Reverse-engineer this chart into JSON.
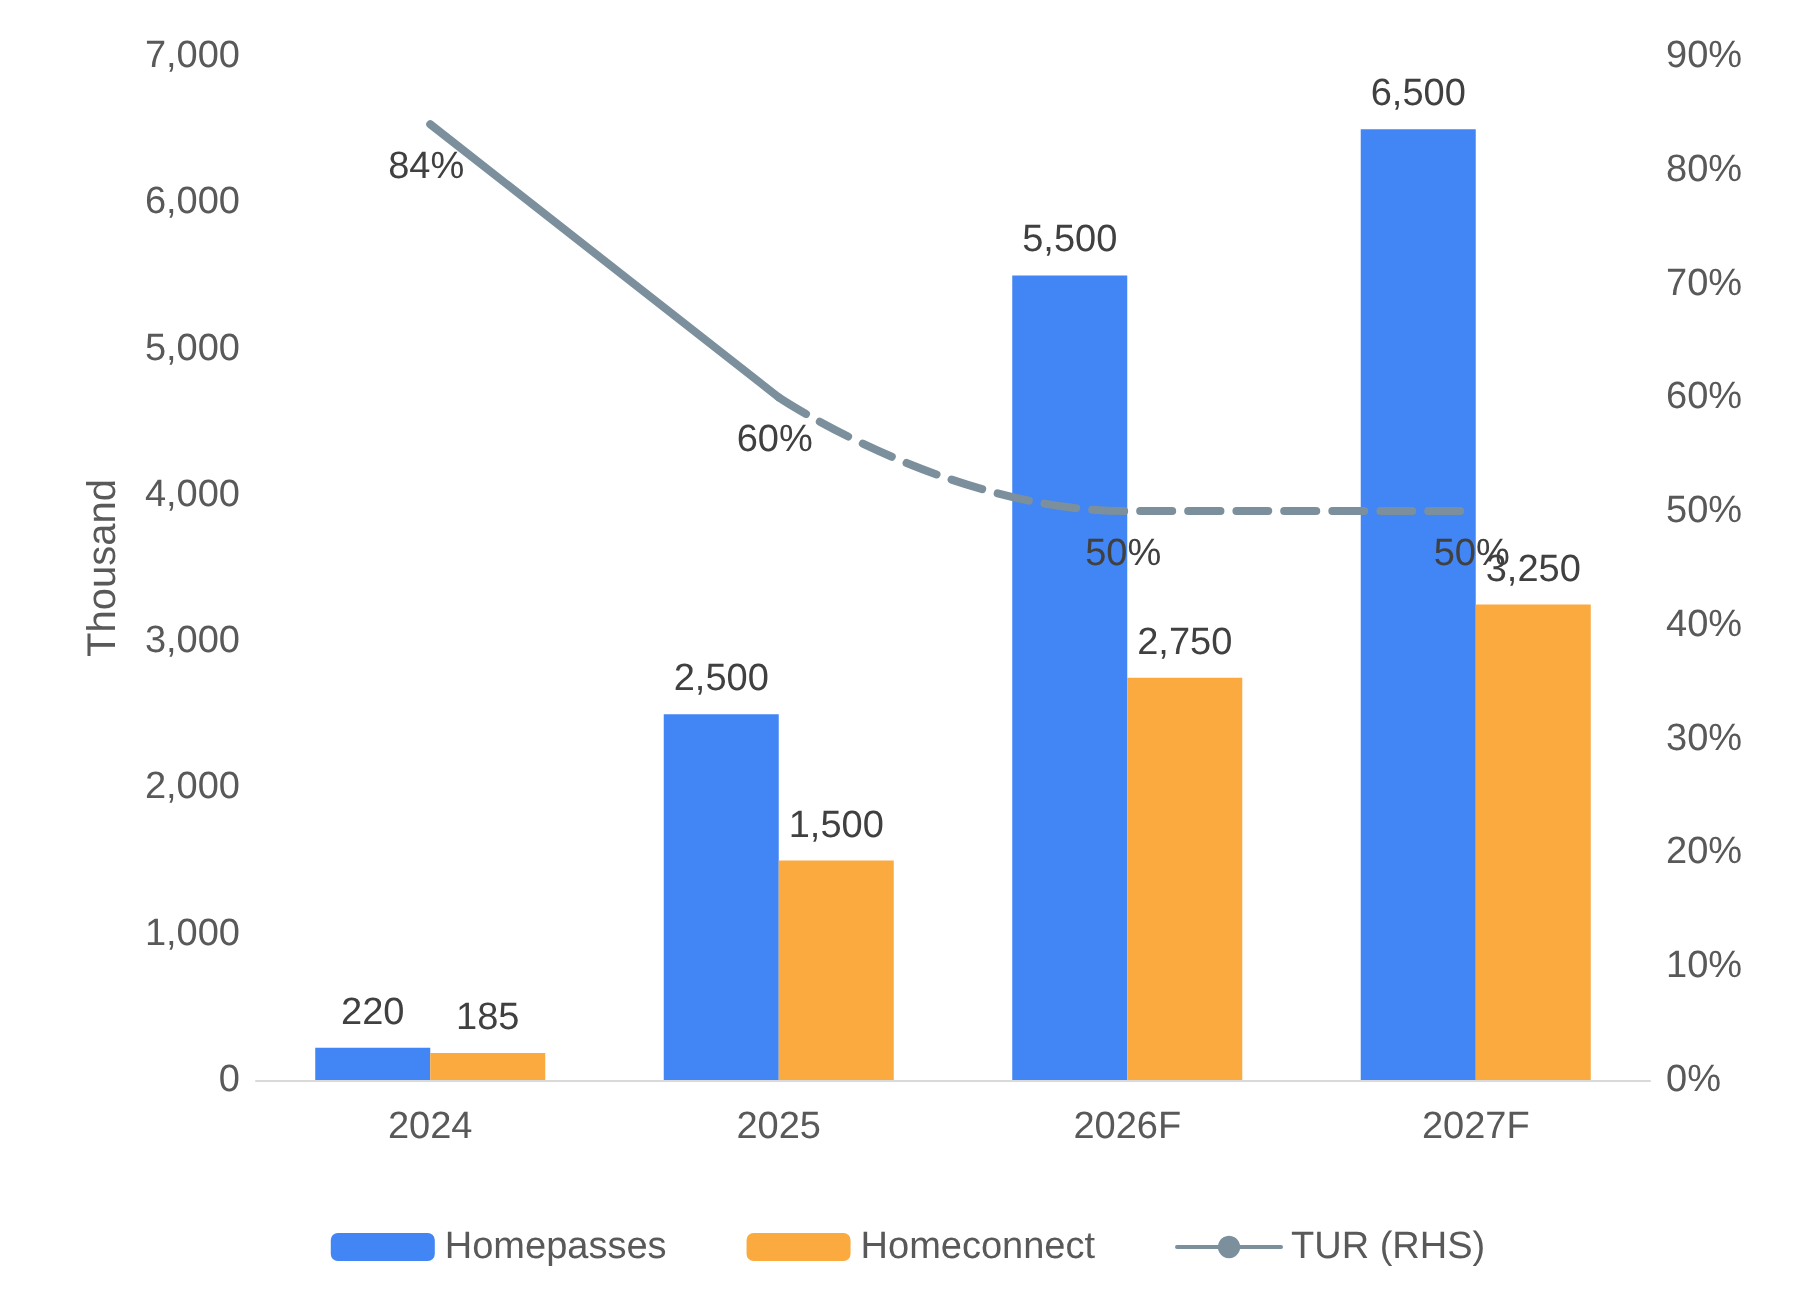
{
  "chart_data": {
    "type": "bar",
    "categories": [
      "2024",
      "2025",
      "2026F",
      "2027F"
    ],
    "ylabel": "Thousand",
    "ylim": [
      0,
      7000
    ],
    "yticks": [
      {
        "value": 0,
        "label": "0"
      },
      {
        "value": 1000,
        "label": "1,000"
      },
      {
        "value": 2000,
        "label": "2,000"
      },
      {
        "value": 3000,
        "label": "3,000"
      },
      {
        "value": 4000,
        "label": "4,000"
      },
      {
        "value": 5000,
        "label": "5,000"
      },
      {
        "value": 6000,
        "label": "6,000"
      },
      {
        "value": 7000,
        "label": "7,000"
      }
    ],
    "y2lim": [
      0,
      90
    ],
    "y2ticks": [
      {
        "value": 0,
        "label": "0%"
      },
      {
        "value": 10,
        "label": "10%"
      },
      {
        "value": 20,
        "label": "20%"
      },
      {
        "value": 30,
        "label": "30%"
      },
      {
        "value": 40,
        "label": "40%"
      },
      {
        "value": 50,
        "label": "50%"
      },
      {
        "value": 60,
        "label": "60%"
      },
      {
        "value": 70,
        "label": "70%"
      },
      {
        "value": 80,
        "label": "80%"
      },
      {
        "value": 90,
        "label": "90%"
      }
    ],
    "grid": false,
    "legend": "bottom",
    "marker": "none",
    "series": [
      {
        "name": "Homepasses",
        "color": "#4285f4",
        "values": [
          220,
          2500,
          5500,
          6500
        ],
        "value_labels": [
          "220",
          "2,500",
          "5,500",
          "6,500"
        ]
      },
      {
        "name": "Homeconnect",
        "color": "#fbaa40",
        "values": [
          185,
          1500,
          2750,
          3250
        ],
        "value_labels": [
          "185",
          "1,500",
          "2,750",
          "3,250"
        ]
      },
      {
        "name": "TUR (RHS)",
        "type": "line",
        "axis": "y2",
        "line_style": "solid",
        "color": "#7b909c",
        "values": [
          84,
          60,
          null,
          null
        ],
        "value_labels": [
          "84%",
          "60%",
          null,
          null
        ]
      },
      {
        "type": "line",
        "axis": "y2",
        "line_style": "dashed",
        "color": "#7b909c",
        "values": [
          null,
          60,
          50,
          50
        ],
        "value_labels": [
          null,
          null,
          "50%",
          "50%"
        ]
      }
    ]
  }
}
